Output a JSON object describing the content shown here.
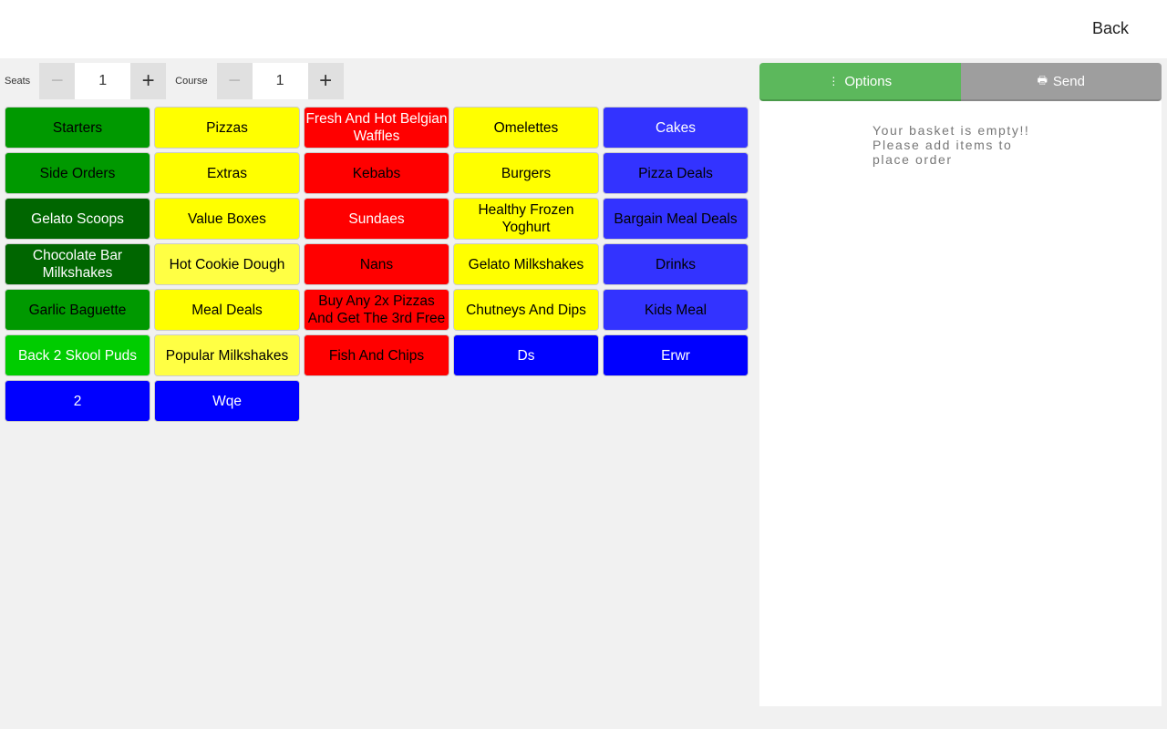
{
  "header": {
    "back_label": "Back"
  },
  "seats": {
    "label": "Seats",
    "value": "1",
    "minus_icon": "minus-icon",
    "plus_icon": "plus-icon"
  },
  "course": {
    "label": "Course",
    "value": "1"
  },
  "categories": [
    {
      "label": "Starters",
      "bg": "#009900",
      "fg": "#000000"
    },
    {
      "label": "Pizzas",
      "bg": "#ffff00",
      "fg": "#000000"
    },
    {
      "label": "Fresh And Hot Belgian Waffles",
      "bg": "#ff0000",
      "fg": "#ffffff"
    },
    {
      "label": "Omelettes",
      "bg": "#ffff00",
      "fg": "#000000"
    },
    {
      "label": "Cakes",
      "bg": "#3333ff",
      "fg": "#ffffff"
    },
    {
      "label": "Side Orders",
      "bg": "#009900",
      "fg": "#000000"
    },
    {
      "label": "Extras",
      "bg": "#ffff00",
      "fg": "#000000"
    },
    {
      "label": "Kebabs",
      "bg": "#ff0000",
      "fg": "#000000"
    },
    {
      "label": "Burgers",
      "bg": "#ffff00",
      "fg": "#000000"
    },
    {
      "label": "Pizza Deals",
      "bg": "#3333ff",
      "fg": "#000000"
    },
    {
      "label": "Gelato Scoops",
      "bg": "#006600",
      "fg": "#ffffff"
    },
    {
      "label": "Value Boxes",
      "bg": "#ffff00",
      "fg": "#000000"
    },
    {
      "label": "Sundaes",
      "bg": "#ff0000",
      "fg": "#ffffff"
    },
    {
      "label": "Healthy Frozen Yoghurt",
      "bg": "#ffff00",
      "fg": "#000000"
    },
    {
      "label": "Bargain Meal Deals",
      "bg": "#3333ff",
      "fg": "#000000"
    },
    {
      "label": "Chocolate Bar Milkshakes",
      "bg": "#006600",
      "fg": "#ffffff"
    },
    {
      "label": "Hot Cookie Dough",
      "bg": "#ffff44",
      "fg": "#000000"
    },
    {
      "label": "Nans",
      "bg": "#ff0000",
      "fg": "#000000"
    },
    {
      "label": "Gelato Milkshakes",
      "bg": "#ffff00",
      "fg": "#000000"
    },
    {
      "label": "Drinks",
      "bg": "#3333ff",
      "fg": "#000000"
    },
    {
      "label": "Garlic Baguette",
      "bg": "#009900",
      "fg": "#000000"
    },
    {
      "label": "Meal Deals",
      "bg": "#ffff00",
      "fg": "#000000"
    },
    {
      "label": "Buy Any 2x Pizzas And Get The 3rd Free",
      "bg": "#ff0000",
      "fg": "#000000"
    },
    {
      "label": "Chutneys And Dips",
      "bg": "#ffff00",
      "fg": "#000000"
    },
    {
      "label": "Kids Meal",
      "bg": "#3333ff",
      "fg": "#000000"
    },
    {
      "label": "Back 2 Skool Puds",
      "bg": "#00cc00",
      "fg": "#ffffff"
    },
    {
      "label": "Popular Milkshakes",
      "bg": "#ffff44",
      "fg": "#000000"
    },
    {
      "label": "Fish And Chips",
      "bg": "#ff0000",
      "fg": "#000000"
    },
    {
      "label": "Ds",
      "bg": "#0000ff",
      "fg": "#ffffff"
    },
    {
      "label": "Erwr",
      "bg": "#0000ff",
      "fg": "#ffffff"
    },
    {
      "label": "2",
      "bg": "#0000ff",
      "fg": "#ffffff"
    },
    {
      "label": "Wqe",
      "bg": "#0000ff",
      "fg": "#ffffff"
    }
  ],
  "basket": {
    "options_label": "Options",
    "options_icon": "vertical-dots-icon",
    "send_label": "Send",
    "send_icon": "printer-icon",
    "empty_message": "Your basket is empty!! Please add items to place order",
    "options_color": "#5cb85c",
    "send_color": "#9e9e9e"
  }
}
